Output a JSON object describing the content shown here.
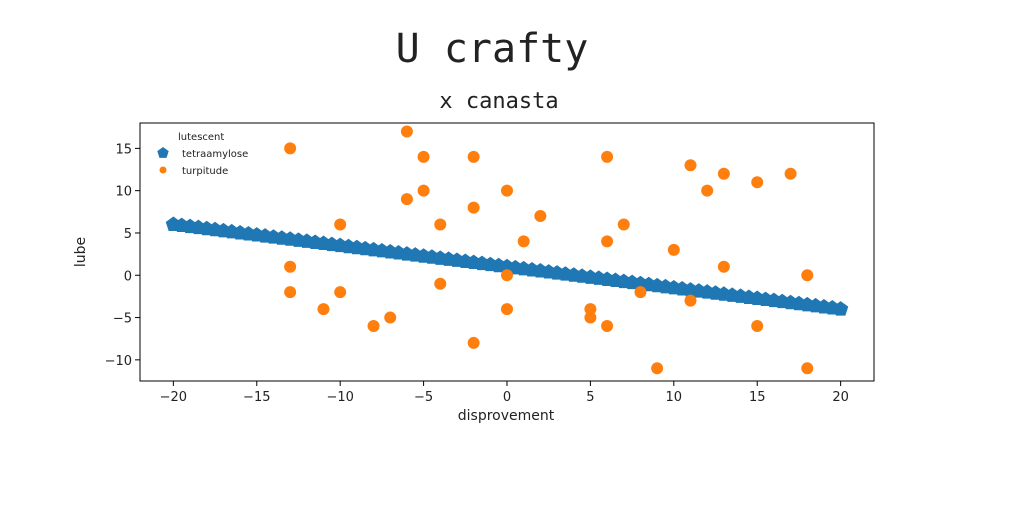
{
  "chart_data": {
    "type": "scatter",
    "title": "U crafty",
    "subtitle": "x canasta",
    "xlabel": "disprovement",
    "ylabel": "lube",
    "xlim": [
      -22,
      22
    ],
    "ylim": [
      -12.5,
      18
    ],
    "xticks": [
      -20,
      -15,
      -10,
      -5,
      0,
      5,
      10,
      15,
      20
    ],
    "yticks": [
      -10,
      -5,
      0,
      5,
      10,
      15
    ],
    "tick_labels_x": [
      "−20",
      "−15",
      "−10",
      "−5",
      "0",
      "5",
      "10",
      "15",
      "20"
    ],
    "tick_labels_y": [
      "−10",
      "−5",
      "0",
      "5",
      "10",
      "15"
    ],
    "grid": false,
    "legend": {
      "title": "lutescent",
      "position": "top-left",
      "entries": [
        "tetraamylose",
        "turpitude"
      ]
    },
    "series": [
      {
        "name": "tetraamylose",
        "marker": "pentagon",
        "color": "#1f77b4",
        "line": {
          "slope": -0.25,
          "intercept": 1.0,
          "x_start": -20,
          "x_end": 20,
          "step": 0.5
        }
      },
      {
        "name": "turpitude",
        "marker": "circle",
        "color": "#ff7f0e",
        "points": [
          [
            -13,
            15
          ],
          [
            -13,
            1
          ],
          [
            -13,
            -2
          ],
          [
            -11,
            -4
          ],
          [
            -10,
            6
          ],
          [
            -10,
            -2
          ],
          [
            -8,
            -6
          ],
          [
            -7,
            -5
          ],
          [
            -6,
            17
          ],
          [
            -6,
            9
          ],
          [
            -5,
            14
          ],
          [
            -5,
            10
          ],
          [
            -4,
            6
          ],
          [
            -4,
            -1
          ],
          [
            -2,
            14
          ],
          [
            -2,
            8
          ],
          [
            -2,
            -8
          ],
          [
            0,
            10
          ],
          [
            0,
            0
          ],
          [
            0,
            -4
          ],
          [
            1,
            4
          ],
          [
            2,
            7
          ],
          [
            5,
            -4
          ],
          [
            5,
            -5
          ],
          [
            6,
            14
          ],
          [
            6,
            4
          ],
          [
            6,
            -6
          ],
          [
            7,
            6
          ],
          [
            8,
            -2
          ],
          [
            9,
            -11
          ],
          [
            10,
            3
          ],
          [
            11,
            13
          ],
          [
            11,
            -3
          ],
          [
            12,
            10
          ],
          [
            13,
            12
          ],
          [
            13,
            1
          ],
          [
            15,
            11
          ],
          [
            15,
            -6
          ],
          [
            17,
            12
          ],
          [
            18,
            0
          ],
          [
            18,
            -11
          ]
        ]
      }
    ]
  }
}
